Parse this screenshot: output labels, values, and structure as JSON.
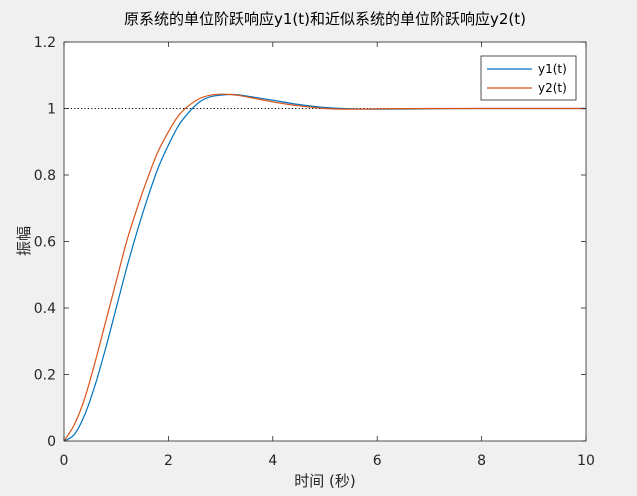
{
  "chart_data": {
    "type": "line",
    "title": "原系统的单位阶跃响应y1(t)和近似系统的单位阶跃响应y2(t)",
    "xlabel": "时间 (秒)",
    "ylabel": "振幅",
    "xlim": [
      0,
      10
    ],
    "ylim": [
      0,
      1.2
    ],
    "xticks": [
      "0",
      "2",
      "4",
      "6",
      "8",
      "10"
    ],
    "yticks": [
      "0",
      "0.2",
      "0.4",
      "0.6",
      "0.8",
      "1",
      "1.2"
    ],
    "grid": false,
    "legend_position": "top-right",
    "reference_line": {
      "y": 1,
      "style": "dotted"
    },
    "series": [
      {
        "name": "y1(t)",
        "color": "#0072bd",
        "x": [
          0,
          0.2,
          0.4,
          0.6,
          0.8,
          1.0,
          1.2,
          1.4,
          1.6,
          1.8,
          2.0,
          2.2,
          2.4,
          2.6,
          2.8,
          3.0,
          3.2,
          3.4,
          3.6,
          4.0,
          4.5,
          5.0,
          5.5,
          6.0,
          7.0,
          8.0,
          10.0
        ],
        "y": [
          0,
          0.02,
          0.08,
          0.17,
          0.28,
          0.4,
          0.52,
          0.63,
          0.73,
          0.82,
          0.89,
          0.95,
          0.99,
          1.02,
          1.035,
          1.04,
          1.042,
          1.04,
          1.035,
          1.025,
          1.012,
          1.003,
          0.999,
          0.998,
          0.999,
          1.0,
          1.0
        ]
      },
      {
        "name": "y2(t)",
        "color": "#d95319",
        "x": [
          0,
          0.2,
          0.4,
          0.6,
          0.8,
          1.0,
          1.2,
          1.4,
          1.6,
          1.8,
          2.0,
          2.2,
          2.4,
          2.6,
          2.8,
          3.0,
          3.2,
          3.4,
          3.6,
          4.0,
          4.5,
          5.0,
          5.5,
          6.0,
          7.0,
          8.0,
          10.0
        ],
        "y": [
          0,
          0.05,
          0.13,
          0.24,
          0.36,
          0.48,
          0.6,
          0.7,
          0.79,
          0.87,
          0.93,
          0.98,
          1.01,
          1.03,
          1.04,
          1.043,
          1.042,
          1.038,
          1.032,
          1.02,
          1.008,
          1.0,
          0.998,
          0.999,
          1.0,
          1.0,
          1.0
        ]
      }
    ]
  }
}
